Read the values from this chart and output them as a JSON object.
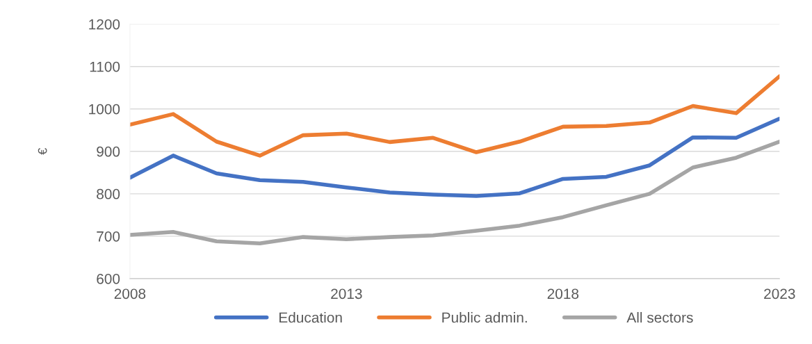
{
  "chart_data": {
    "type": "line",
    "ylabel": "€",
    "x": [
      2008,
      2009,
      2010,
      2011,
      2012,
      2013,
      2014,
      2015,
      2016,
      2017,
      2018,
      2019,
      2020,
      2021,
      2022,
      2023
    ],
    "series": [
      {
        "name": "Education",
        "color": "#4472c4",
        "values": [
          838,
          890,
          848,
          832,
          828,
          815,
          803,
          798,
          795,
          801,
          835,
          840,
          867,
          933,
          932,
          977
        ]
      },
      {
        "name": "Public admin.",
        "color": "#ed7d31",
        "values": [
          963,
          988,
          923,
          890,
          938,
          942,
          922,
          932,
          898,
          923,
          958,
          960,
          968,
          1007,
          990,
          1077
        ]
      },
      {
        "name": "All sectors",
        "color": "#a5a5a5",
        "values": [
          703,
          710,
          688,
          683,
          698,
          693,
          698,
          702,
          713,
          725,
          745,
          773,
          800,
          862,
          885,
          923
        ]
      }
    ],
    "xlim": [
      2008,
      2023
    ],
    "xticks": [
      2008,
      2013,
      2018,
      2023
    ],
    "ylim": [
      600,
      1200
    ],
    "yticks": [
      600,
      700,
      800,
      900,
      1000,
      1100,
      1200
    ],
    "grid": "y",
    "legend": "bottom",
    "marker": "none",
    "line_style": "solid"
  }
}
